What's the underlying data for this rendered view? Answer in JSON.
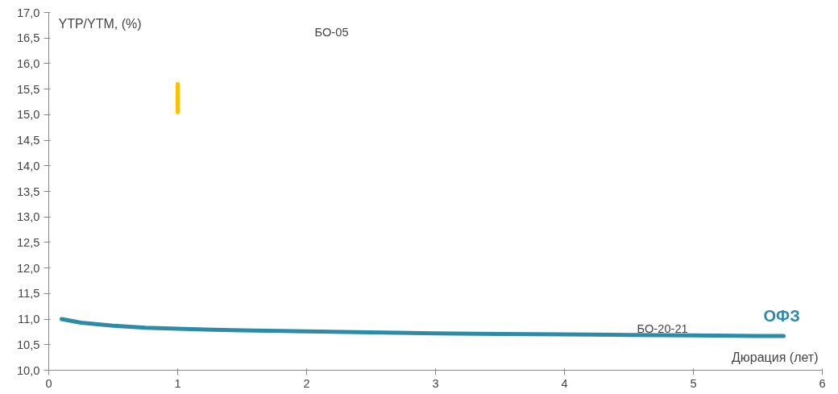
{
  "chart_data": {
    "type": "line",
    "ylabel": "YTP/YTM, (%)",
    "xlabel": "Дюрация (лет)",
    "xlim": [
      0,
      6
    ],
    "xticks": [
      0,
      1,
      2,
      3,
      4,
      5,
      6
    ],
    "ylim": [
      10,
      17
    ],
    "yticks": [
      {
        "value": 10,
        "label": "10,0"
      },
      {
        "value": 10.5,
        "label": "10,5"
      },
      {
        "value": 11,
        "label": "11,0"
      },
      {
        "value": 11.5,
        "label": "11,5"
      },
      {
        "value": 12,
        "label": "12,0"
      },
      {
        "value": 12.5,
        "label": "12,5"
      },
      {
        "value": 13,
        "label": "13,0"
      },
      {
        "value": 13.5,
        "label": "13,5"
      },
      {
        "value": 14,
        "label": "14,0"
      },
      {
        "value": 14.5,
        "label": "14,5"
      },
      {
        "value": 15,
        "label": "15,0"
      },
      {
        "value": 15.5,
        "label": "15,5"
      },
      {
        "value": 16,
        "label": "16,0"
      },
      {
        "value": 16.5,
        "label": "16,5"
      },
      {
        "value": 17,
        "label": "17,0"
      }
    ],
    "grid": false,
    "marker": "none",
    "line_style": "solid",
    "series": [
      {
        "name": "ОФЗ",
        "color": "#2e8ba8",
        "x": [
          0.1,
          0.25,
          0.5,
          0.75,
          1,
          1.5,
          2,
          2.5,
          3,
          3.5,
          4,
          4.5,
          5,
          5.5,
          5.7
        ],
        "values": [
          11.0,
          10.93,
          10.87,
          10.83,
          10.81,
          10.78,
          10.76,
          10.74,
          10.72,
          10.71,
          10.7,
          10.69,
          10.68,
          10.67,
          10.67
        ]
      },
      {
        "color": "#ffc000",
        "x": [
          1,
          1
        ],
        "values": [
          15.05,
          15.6
        ]
      }
    ],
    "annotations": [
      "БО-05",
      "БО-20-21"
    ]
  }
}
